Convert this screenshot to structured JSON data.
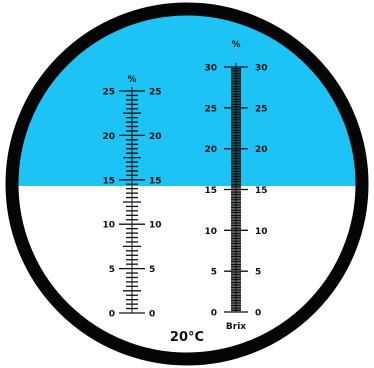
{
  "colors": {
    "sky": "#1EC3F5",
    "field": "#FFFFFF",
    "ink": "#111111",
    "ring": "#050505"
  },
  "reading": {
    "boundary_value": 15
  },
  "left_scale": {
    "unit": "%",
    "min": 0,
    "max": 25,
    "major_step": 5,
    "minor_step": 0.5,
    "labels": [
      "0",
      "5",
      "10",
      "15",
      "20",
      "25"
    ]
  },
  "right_scale": {
    "unit": "%",
    "min": 0,
    "max": 30,
    "major_step": 5,
    "minor_step": 0.2,
    "labels": [
      "0",
      "5",
      "10",
      "15",
      "20",
      "25",
      "30"
    ],
    "caption": "Brix"
  },
  "temperature": "20°C"
}
